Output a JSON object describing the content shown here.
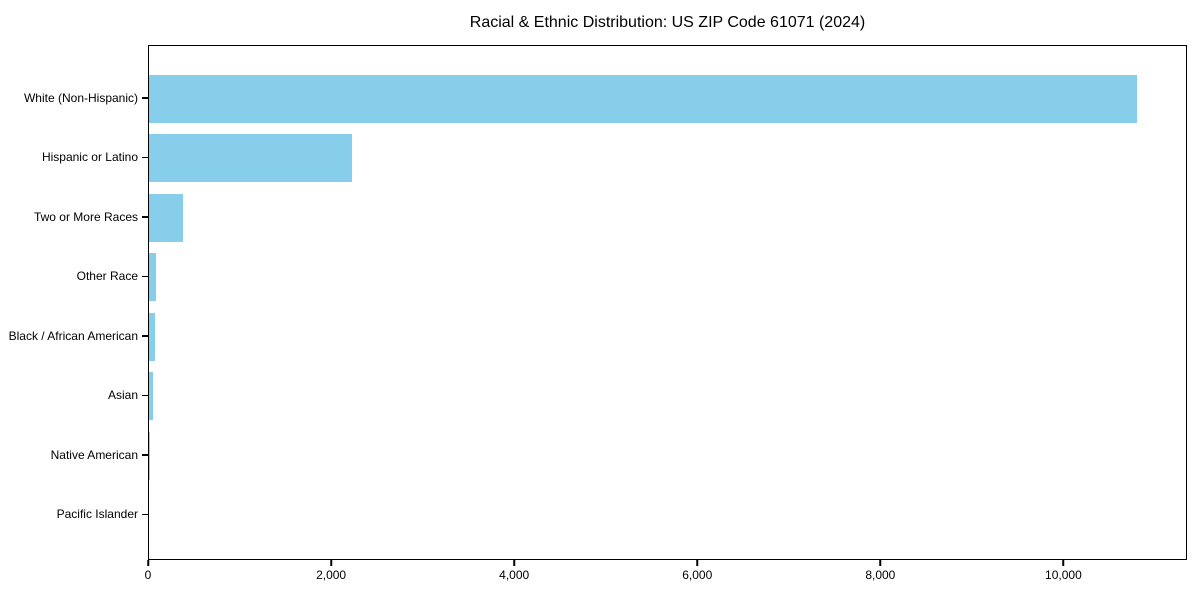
{
  "chart_data": {
    "type": "bar",
    "orientation": "horizontal",
    "title": "Racial & Ethnic Distribution: US ZIP Code 61071 (2024)",
    "categories": [
      "White (Non-Hispanic)",
      "Hispanic or Latino",
      "Two or More Races",
      "Other Race",
      "Black / African American",
      "Asian",
      "Native American",
      "Pacific Islander"
    ],
    "values": [
      10810,
      2220,
      370,
      75,
      70,
      40,
      10,
      0
    ],
    "bar_color": "#87CEEB",
    "axis_color": "#000000",
    "text_color": "#000000",
    "background_color": "#ffffff",
    "xlim": [
      0,
      11350
    ],
    "xlabel": "",
    "ylabel": "",
    "grid": false,
    "legend": null,
    "xticks": [
      {
        "value": 0,
        "label": "0"
      },
      {
        "value": 2000,
        "label": "2,000"
      },
      {
        "value": 4000,
        "label": "4,000"
      },
      {
        "value": 6000,
        "label": "6,000"
      },
      {
        "value": 8000,
        "label": "8,000"
      },
      {
        "value": 10000,
        "label": "10,000"
      }
    ]
  }
}
